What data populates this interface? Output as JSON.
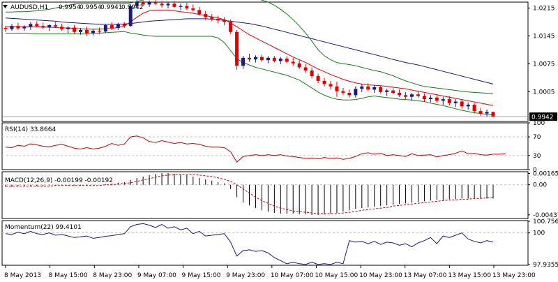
{
  "title": {
    "symbol": "AUDUSD,H1",
    "ohlc": [
      "0.9954",
      "0.9954",
      "0.9941",
      "0.9942"
    ]
  },
  "colors": {
    "bull": "#1a1a80",
    "bear": "#e00000",
    "upper_band": "#1a7a1a",
    "ma_slow": "#1a1a80",
    "ma_fast": "#e00000",
    "rsi": "#cc0000",
    "macd_hist": "#000000",
    "macd_signal": "#cc0000",
    "momentum": "#1a1a80",
    "grid": "#c0c0c0",
    "price_tag_bg": "#000000",
    "price_tag_fg": "#ffffff"
  },
  "x_axis_labels": [
    "8 May 2013",
    "8 May 15:00",
    "8 May 23:00",
    "9 May 07:00",
    "9 May 15:00",
    "9 May 23:00",
    "10 May 07:00",
    "10 May 15:00",
    "10 May 23:00",
    "13 May 07:00",
    "13 May 15:00",
    "13 May 23:00"
  ],
  "chart_data": [
    {
      "type": "candlestick",
      "name": "price",
      "ylim": [
        0.993,
        1.023
      ],
      "tick_labels": [
        "1.0215",
        "1.0145",
        "1.0075",
        "1.0005"
      ],
      "ticks": [
        1.0215,
        1.0145,
        1.0075,
        1.0005
      ],
      "current_price": "0.9942",
      "candles": [
        [
          1.0165,
          1.017,
          1.0155,
          1.0162
        ],
        [
          1.0162,
          1.0175,
          1.0158,
          1.017
        ],
        [
          1.017,
          1.0178,
          1.016,
          1.0164
        ],
        [
          1.0164,
          1.0172,
          1.0158,
          1.0168
        ],
        [
          1.0168,
          1.018,
          1.016,
          1.0175
        ],
        [
          1.0175,
          1.0182,
          1.0166,
          1.017
        ],
        [
          1.017,
          1.0178,
          1.0162,
          1.0166
        ],
        [
          1.0166,
          1.0174,
          1.0158,
          1.0172
        ],
        [
          1.0172,
          1.018,
          1.0165,
          1.0168
        ],
        [
          1.0168,
          1.0176,
          1.0158,
          1.0162
        ],
        [
          1.0162,
          1.017,
          1.0152,
          1.0166
        ],
        [
          1.0166,
          1.0172,
          1.015,
          1.0155
        ],
        [
          1.0155,
          1.0165,
          1.0148,
          1.016
        ],
        [
          1.016,
          1.0168,
          1.0145,
          1.0152
        ],
        [
          1.0152,
          1.0162,
          1.0146,
          1.0158
        ],
        [
          1.0158,
          1.0166,
          1.015,
          1.0156
        ],
        [
          1.0156,
          1.0175,
          1.0152,
          1.0172
        ],
        [
          1.0172,
          1.018,
          1.016,
          1.0165
        ],
        [
          1.0165,
          1.0178,
          1.016,
          1.0175
        ],
        [
          1.0175,
          1.018,
          1.0165,
          1.017
        ],
        [
          1.017,
          1.0225,
          1.0168,
          1.022
        ],
        [
          1.022,
          1.0235,
          1.0215,
          1.023
        ],
        [
          1.023,
          1.0236,
          1.022,
          1.0224
        ],
        [
          1.0224,
          1.0234,
          1.0218,
          1.023
        ],
        [
          1.023,
          1.0235,
          1.0222,
          1.0226
        ],
        [
          1.0226,
          1.0232,
          1.0216,
          1.0222
        ],
        [
          1.0222,
          1.023,
          1.0214,
          1.0226
        ],
        [
          1.0226,
          1.0232,
          1.0215,
          1.0218
        ],
        [
          1.0218,
          1.0226,
          1.021,
          1.022
        ],
        [
          1.022,
          1.0228,
          1.021,
          1.0214
        ],
        [
          1.0214,
          1.0224,
          1.0206,
          1.021
        ],
        [
          1.021,
          1.0218,
          1.0196,
          1.02
        ],
        [
          1.02,
          1.0208,
          1.0185,
          1.0192
        ],
        [
          1.0192,
          1.02,
          1.0182,
          1.0188
        ],
        [
          1.0188,
          1.0196,
          1.0176,
          1.0184
        ],
        [
          1.0184,
          1.0192,
          1.0172,
          1.018
        ],
        [
          1.018,
          1.0186,
          1.015,
          1.0155
        ],
        [
          1.0155,
          1.016,
          1.006,
          1.007
        ],
        [
          1.007,
          1.0095,
          1.0062,
          1.009
        ],
        [
          1.009,
          1.01,
          1.008,
          1.0086
        ],
        [
          1.0086,
          1.0096,
          1.0078,
          1.0092
        ],
        [
          1.0092,
          1.0098,
          1.008,
          1.0084
        ],
        [
          1.0084,
          1.0094,
          1.0076,
          1.009
        ],
        [
          1.009,
          1.0095,
          1.0078,
          1.0082
        ],
        [
          1.0082,
          1.0092,
          1.0074,
          1.0088
        ],
        [
          1.0088,
          1.0094,
          1.0076,
          1.008
        ],
        [
          1.008,
          1.009,
          1.007,
          1.0076
        ],
        [
          1.0076,
          1.0084,
          1.0062,
          1.0066
        ],
        [
          1.0066,
          1.0074,
          1.0052,
          1.0058
        ],
        [
          1.0058,
          1.0066,
          1.0038,
          1.0044
        ],
        [
          1.0044,
          1.005,
          1.0026,
          1.0032
        ],
        [
          1.0032,
          1.004,
          1.0018,
          1.0024
        ],
        [
          1.0024,
          1.0032,
          1.001,
          1.0018
        ],
        [
          1.0018,
          1.003,
          0.9992,
          1.0006
        ],
        [
          1.0006,
          1.0014,
          0.9996,
          1.0002
        ],
        [
          1.0002,
          1.001,
          0.999,
          0.9996
        ],
        [
          0.9996,
          1.0018,
          0.999,
          1.0012
        ],
        [
          1.0012,
          1.0024,
          1.0004,
          1.0018
        ],
        [
          1.0018,
          1.0026,
          1.0006,
          1.001
        ],
        [
          1.001,
          1.0022,
          1.0002,
          1.0016
        ],
        [
          1.0016,
          1.002,
          1.0,
          1.0004
        ],
        [
          1.0004,
          1.0012,
          0.9994,
          1.0008
        ],
        [
          1.0008,
          1.0014,
          0.9998,
          1.0002
        ],
        [
          1.0002,
          1.001,
          0.9992,
          0.9996
        ],
        [
          0.9996,
          1.0004,
          0.9986,
          0.9992
        ],
        [
          0.9992,
          1.0002,
          0.9982,
          0.9998
        ],
        [
          0.9998,
          1.0006,
          0.999,
          0.9994
        ],
        [
          0.9994,
          1.0,
          0.998,
          0.9986
        ],
        [
          0.9986,
          0.9996,
          0.9978,
          0.999
        ],
        [
          0.999,
          0.9998,
          0.9976,
          0.9982
        ],
        [
          0.9982,
          0.9992,
          0.9972,
          0.9986
        ],
        [
          0.9986,
          0.9994,
          0.997,
          0.9976
        ],
        [
          0.9976,
          0.9986,
          0.9966,
          0.998
        ],
        [
          0.998,
          0.9986,
          0.9962,
          0.9968
        ],
        [
          0.9968,
          0.9978,
          0.996,
          0.9972
        ],
        [
          0.9972,
          0.9976,
          0.995,
          0.9956
        ],
        [
          0.9956,
          0.9964,
          0.9944,
          0.995
        ],
        [
          0.995,
          0.996,
          0.9942,
          0.9954
        ],
        [
          0.9954,
          0.9954,
          0.9941,
          0.9942
        ]
      ],
      "bb_upper": [
        1.0205,
        1.0205,
        1.0206,
        1.0206,
        1.0207,
        1.0208,
        1.021,
        1.0212,
        1.0215,
        1.0218,
        1.0222,
        1.0225,
        1.0226,
        1.0226,
        1.0226,
        1.0226,
        1.0226,
        1.0226,
        1.0226,
        1.0226,
        1.0228,
        1.0231,
        1.0236,
        1.024,
        1.024,
        1.024,
        1.024,
        1.024,
        1.024,
        1.024,
        1.024,
        1.024,
        1.024,
        1.024,
        1.0242,
        1.0244,
        1.0246,
        1.0246,
        1.0246,
        1.0244,
        1.024,
        1.0235,
        1.023,
        1.0222,
        1.0212,
        1.02,
        1.0186,
        1.017,
        1.0152,
        1.0132,
        1.011,
        1.0095,
        1.0085,
        1.0078,
        1.0075,
        1.0073,
        1.007,
        1.0066,
        1.0062,
        1.0058,
        1.0055,
        1.005,
        1.0045,
        1.0038,
        1.0032,
        1.0027,
        1.0022,
        1.0018,
        1.0016,
        1.0014,
        1.0012,
        1.001,
        1.0008,
        1.0006,
        1.0004,
        1.0003,
        1.0002,
        1.0001,
        1.0
      ],
      "bb_lower": [
        1.0152,
        1.0152,
        1.0152,
        1.0152,
        1.0151,
        1.015,
        1.015,
        1.015,
        1.015,
        1.015,
        1.015,
        1.015,
        1.015,
        1.015,
        1.0152,
        1.0152,
        1.0153,
        1.0154,
        1.0155,
        1.0156,
        1.0152,
        1.015,
        1.0147,
        1.0145,
        1.0144,
        1.0144,
        1.0144,
        1.0144,
        1.0144,
        1.0144,
        1.0144,
        1.0144,
        1.0144,
        1.0144,
        1.014,
        1.0128,
        1.0108,
        1.0088,
        1.0078,
        1.0072,
        1.0066,
        1.0062,
        1.0058,
        1.0054,
        1.005,
        1.0046,
        1.004,
        1.0034,
        1.0024,
        1.0014,
        1.0004,
        0.9996,
        0.999,
        0.9986,
        0.9984,
        0.9984,
        0.9985,
        0.9988,
        0.9992,
        0.9994,
        0.9992,
        0.999,
        0.9988,
        0.9986,
        0.9985,
        0.9984,
        0.9982,
        0.998,
        0.9976,
        0.9973,
        0.997,
        0.9966,
        0.9962,
        0.9958,
        0.9955,
        0.9952,
        0.995,
        0.9948,
        0.9946
      ],
      "ma_slow": [
        1.019,
        1.0189,
        1.0188,
        1.0187,
        1.0186,
        1.0185,
        1.0184,
        1.0183,
        1.0182,
        1.018,
        1.0179,
        1.0178,
        1.0177,
        1.0176,
        1.0175,
        1.0174,
        1.0174,
        1.0174,
        1.0174,
        1.0175,
        1.0176,
        1.0178,
        1.018,
        1.0182,
        1.0183,
        1.0184,
        1.0185,
        1.0186,
        1.0187,
        1.0188,
        1.0188,
        1.0188,
        1.0188,
        1.0187,
        1.0186,
        1.0184,
        1.0182,
        1.018,
        1.0178,
        1.0176,
        1.0173,
        1.017,
        1.0166,
        1.0162,
        1.0158,
        1.0154,
        1.015,
        1.0146,
        1.0142,
        1.0138,
        1.0134,
        1.013,
        1.0126,
        1.0122,
        1.0118,
        1.0114,
        1.011,
        1.0106,
        1.0102,
        1.0098,
        1.0094,
        1.009,
        1.0086,
        1.0082,
        1.0078,
        1.0075,
        1.0072,
        1.0068,
        1.0064,
        1.006,
        1.0056,
        1.0052,
        1.0048,
        1.0044,
        1.004,
        1.0036,
        1.0032,
        1.0028,
        1.0024
      ],
      "ma_fast": [
        1.0168,
        1.0168,
        1.0168,
        1.0168,
        1.0168,
        1.0168,
        1.0167,
        1.0167,
        1.0166,
        1.0165,
        1.0165,
        1.0164,
        1.0163,
        1.0162,
        1.0162,
        1.0162,
        1.0163,
        1.0164,
        1.0166,
        1.017,
        1.018,
        1.0192,
        1.0202,
        1.0208,
        1.021,
        1.021,
        1.021,
        1.0208,
        1.0206,
        1.0204,
        1.0202,
        1.0199,
        1.0196,
        1.0193,
        1.019,
        1.0186,
        1.0178,
        1.0168,
        1.0158,
        1.0148,
        1.014,
        1.0132,
        1.0124,
        1.0116,
        1.0108,
        1.01,
        1.0092,
        1.0085,
        1.0078,
        1.007,
        1.0062,
        1.0055,
        1.0048,
        1.0042,
        1.0036,
        1.0031,
        1.0027,
        1.0024,
        1.0022,
        1.0021,
        1.002,
        1.0018,
        1.0016,
        1.0014,
        1.0012,
        1.0009,
        1.0006,
        1.0003,
        1.0,
        0.9997,
        0.9994,
        0.9991,
        0.9988,
        0.9985,
        0.9982,
        0.9979,
        0.9976,
        0.9973,
        0.997
      ]
    },
    {
      "type": "line",
      "name": "RSI(14)",
      "label": "RSI(14) 33.8664",
      "ylim": [
        0,
        100
      ],
      "tick_labels": [
        "100",
        "70",
        "30",
        "0"
      ],
      "ticks": [
        100,
        70,
        30,
        0
      ],
      "levels": [
        70,
        30
      ],
      "values": [
        48,
        47,
        52,
        50,
        55,
        53,
        50,
        49,
        52,
        54,
        50,
        46,
        44,
        47,
        44,
        46,
        50,
        56,
        52,
        55,
        70,
        72,
        68,
        60,
        58,
        62,
        59,
        56,
        58,
        55,
        56,
        54,
        50,
        48,
        48,
        47,
        38,
        16,
        28,
        30,
        32,
        30,
        32,
        30,
        32,
        29,
        28,
        26,
        24,
        25,
        23,
        26,
        24,
        25,
        22,
        24,
        28,
        34,
        36,
        33,
        35,
        30,
        32,
        30,
        28,
        34,
        30,
        31,
        32,
        27,
        30,
        32,
        35,
        40,
        34,
        35,
        32,
        31,
        33,
        33,
        34
      ]
    },
    {
      "type": "bar",
      "name": "MACD(12,26,9)",
      "label": "MACD(12,26,9) -0.00199 -0.00192",
      "ylim": [
        -0.0049,
        0.0019
      ],
      "tick_labels": [
        "0.00165",
        "0.00",
        "-0.00437"
      ],
      "ticks": [
        0.00165,
        0.0,
        -0.00437
      ],
      "histogram": [
        -0.0003,
        -0.0003,
        -0.0002,
        -0.0002,
        -0.0002,
        -0.0002,
        -0.0002,
        -0.0001,
        -0.0001,
        -0.0001,
        -0.0001,
        -0.0001,
        -0.0001,
        -0.0001,
        -0.0001,
        0.0,
        0.0001,
        0.0002,
        0.0003,
        0.0004,
        0.0007,
        0.001,
        0.0012,
        0.0014,
        0.0016,
        0.0017,
        0.0017,
        0.0016,
        0.0015,
        0.0014,
        0.0012,
        0.001,
        0.0008,
        0.0006,
        0.0004,
        0.0002,
        -0.0006,
        -0.0018,
        -0.0026,
        -0.003,
        -0.0034,
        -0.0037,
        -0.0039,
        -0.0041,
        -0.0042,
        -0.0042,
        -0.0042,
        -0.0043,
        -0.0043,
        -0.0044,
        -0.0044,
        -0.0043,
        -0.0042,
        -0.0041,
        -0.0039,
        -0.0037,
        -0.0035,
        -0.0034,
        -0.0033,
        -0.0032,
        -0.0031,
        -0.003,
        -0.0029,
        -0.0028,
        -0.0027,
        -0.0026,
        -0.0025,
        -0.0024,
        -0.0023,
        -0.0022,
        -0.0022,
        -0.0021,
        -0.0021,
        -0.002,
        -0.002,
        -0.002,
        -0.002,
        -0.002,
        -0.002
      ],
      "signal": [
        -0.0002,
        -0.0002,
        -0.0002,
        -0.0002,
        -0.0002,
        -0.0002,
        -0.0002,
        -0.0002,
        -0.0001,
        -0.0001,
        -0.0001,
        -0.0001,
        -0.0001,
        -0.0001,
        -0.0001,
        -0.0001,
        0.0,
        0.0,
        0.0001,
        0.0002,
        0.0003,
        0.0005,
        0.0007,
        0.0009,
        0.0011,
        0.0013,
        0.0014,
        0.0015,
        0.0015,
        0.0015,
        0.0015,
        0.0014,
        0.0013,
        0.0012,
        0.001,
        0.0008,
        0.0005,
        0.0,
        -0.0006,
        -0.0012,
        -0.0018,
        -0.0023,
        -0.0027,
        -0.0031,
        -0.0034,
        -0.0036,
        -0.0038,
        -0.0039,
        -0.004,
        -0.0041,
        -0.0042,
        -0.0042,
        -0.0042,
        -0.0042,
        -0.0041,
        -0.004,
        -0.0039,
        -0.0037,
        -0.0036,
        -0.0035,
        -0.0034,
        -0.0033,
        -0.0031,
        -0.003,
        -0.0029,
        -0.0028,
        -0.0027,
        -0.0026,
        -0.0025,
        -0.0024,
        -0.0023,
        -0.0022,
        -0.0022,
        -0.0021,
        -0.0021,
        -0.002,
        -0.002,
        -0.0019,
        -0.0019
      ]
    },
    {
      "type": "line",
      "name": "Momentum(22)",
      "label": "Momentum(22) 99.4101",
      "ylim": [
        97.9,
        100.8
      ],
      "tick_labels": [
        "100.7566",
        "100",
        "97.9355"
      ],
      "ticks": [
        100.7566,
        100,
        97.9355
      ],
      "levels": [
        100
      ],
      "values": [
        99.95,
        99.9,
        100.05,
        99.95,
        100.1,
        99.95,
        99.9,
        100.0,
        99.85,
        99.9,
        99.8,
        99.7,
        99.75,
        99.8,
        99.65,
        99.7,
        99.78,
        99.82,
        99.9,
        99.95,
        100.4,
        100.55,
        100.6,
        100.5,
        100.35,
        100.55,
        100.3,
        100.4,
        100.2,
        100.3,
        99.95,
        100.1,
        99.8,
        99.85,
        99.9,
        99.95,
        99.4,
        98.5,
        98.85,
        98.9,
        98.8,
        98.85,
        98.7,
        98.4,
        98.2,
        98.0,
        98.1,
        98.0,
        97.95,
        98.1,
        97.95,
        98.0,
        97.95,
        98.1,
        98.0,
        99.5,
        99.4,
        99.45,
        99.3,
        99.45,
        99.25,
        99.4,
        99.35,
        99.2,
        99.3,
        99.1,
        99.35,
        99.5,
        99.7,
        99.3,
        99.8,
        99.7,
        99.85,
        100.0,
        99.6,
        99.45,
        99.35,
        99.5,
        99.41
      ]
    }
  ]
}
